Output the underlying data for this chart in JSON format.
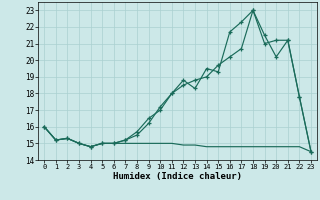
{
  "xlabel": "Humidex (Indice chaleur)",
  "background_color": "#cce8e8",
  "grid_color": "#aad0d0",
  "line_color": "#1a6b5a",
  "x": [
    0,
    1,
    2,
    3,
    4,
    5,
    6,
    7,
    8,
    9,
    10,
    11,
    12,
    13,
    14,
    15,
    16,
    17,
    18,
    19,
    20,
    21,
    22,
    23
  ],
  "line1": [
    16.0,
    15.2,
    15.3,
    15.0,
    14.8,
    15.0,
    15.0,
    15.2,
    15.7,
    16.5,
    17.0,
    18.0,
    18.8,
    18.3,
    19.5,
    19.3,
    21.7,
    22.3,
    23.0,
    21.0,
    21.2,
    21.2,
    17.8,
    14.5
  ],
  "line2": [
    16.0,
    15.2,
    15.3,
    15.0,
    14.8,
    15.0,
    15.0,
    15.2,
    15.5,
    16.2,
    17.2,
    18.0,
    18.5,
    18.8,
    19.0,
    19.7,
    20.2,
    20.7,
    23.0,
    21.5,
    20.2,
    21.2,
    17.8,
    14.5
  ],
  "line3": [
    16.0,
    15.2,
    15.3,
    15.0,
    14.8,
    15.0,
    15.0,
    15.0,
    15.0,
    15.0,
    15.0,
    15.0,
    14.9,
    14.9,
    14.8,
    14.8,
    14.8,
    14.8,
    14.8,
    14.8,
    14.8,
    14.8,
    14.8,
    14.5
  ],
  "ylim": [
    14.0,
    23.5
  ],
  "xlim": [
    -0.5,
    23.5
  ],
  "yticks": [
    14,
    15,
    16,
    17,
    18,
    19,
    20,
    21,
    22,
    23
  ],
  "xticks": [
    0,
    1,
    2,
    3,
    4,
    5,
    6,
    7,
    8,
    9,
    10,
    11,
    12,
    13,
    14,
    15,
    16,
    17,
    18,
    19,
    20,
    21,
    22,
    23
  ]
}
